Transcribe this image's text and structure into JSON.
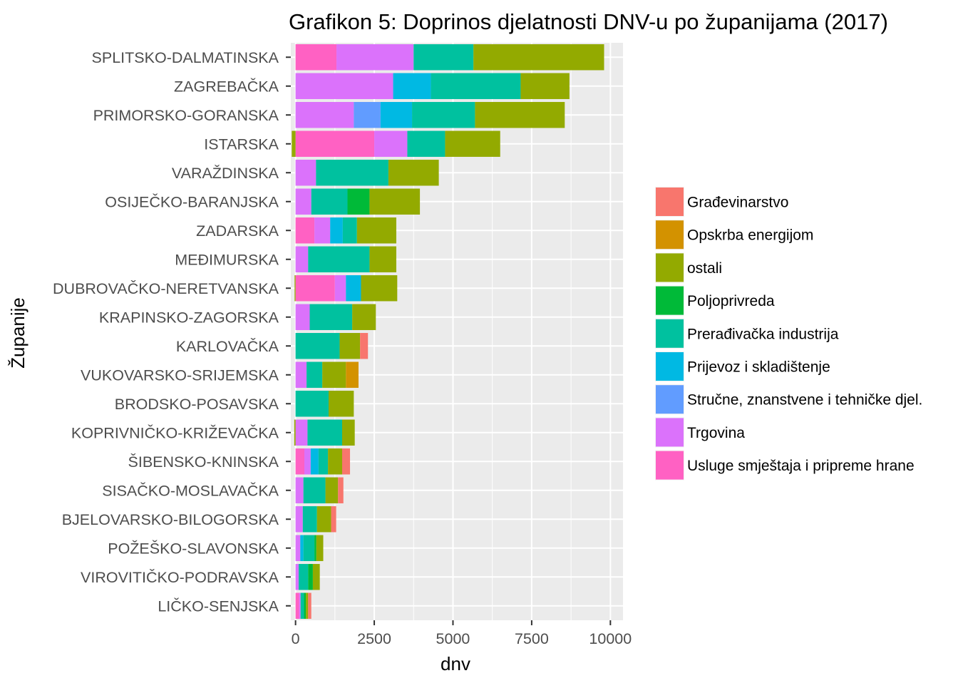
{
  "chart_data": {
    "type": "bar",
    "orientation": "horizontal",
    "stacked": true,
    "title": "Grafikon 5: Doprinos djelatnosti DNV-u po županijama (2017)",
    "xlabel": "dnv",
    "ylabel": "Županije",
    "xlim": [
      -150,
      10400
    ],
    "x_ticks": [
      0,
      2500,
      5000,
      7500,
      10000
    ],
    "x_tick_labels": [
      "0",
      "2500",
      "5000",
      "7500",
      "10000"
    ],
    "grid": true,
    "legend_position": "right",
    "categories": [
      "SPLITSKO-DALMATINSKA",
      "ZAGREBAČKA",
      "PRIMORSKO-GORANSKA",
      "ISTARSKA",
      "VARAŽDINSKA",
      "OSIJEČKO-BARANJSKA",
      "ZADARSKA",
      "MEĐIMURSKA",
      "DUBROVAČKO-NERETVANSKA",
      "KRAPINSKO-ZAGORSKA",
      "KARLOVAČKA",
      "VUKOVARSKO-SRIJEMSKA",
      "BRODSKO-POSAVSKA",
      "KOPRIVNIČKO-KRIŽEVAČKA",
      "ŠIBENSKO-KNINSKA",
      "SISAČKO-MOSLAVAČKA",
      "BJELOVARSKO-BILOGORSKA",
      "POŽEŠKO-SLAVONSKA",
      "VIROVITIČKO-PODRAVSKA",
      "LIČKO-SENJSKA"
    ],
    "stack_order": [
      "Usluge smještaja i pripreme hrane",
      "Trgovina",
      "Stručne, znanstvene i tehničke djel.",
      "Prijevoz i skladištenje",
      "Prerađivačka industrija",
      "Poljoprivreda",
      "ostali",
      "Opskrba energijom",
      "Građevinarstvo"
    ],
    "series": [
      {
        "name": "Građevinarstvo",
        "color": "#F8766D",
        "values": [
          0,
          0,
          0,
          0,
          0,
          0,
          0,
          0,
          0,
          0,
          250,
          0,
          0,
          0,
          250,
          170,
          160,
          0,
          0,
          100
        ]
      },
      {
        "name": "Opskrba energijom",
        "color": "#D39200",
        "values": [
          0,
          0,
          0,
          0,
          0,
          0,
          0,
          0,
          0,
          0,
          0,
          400,
          0,
          0,
          0,
          0,
          0,
          0,
          0,
          0
        ]
      },
      {
        "name": "ostali",
        "color": "#93AA00",
        "values": [
          4150,
          1550,
          2850,
          1750,
          1600,
          1600,
          1250,
          850,
          1150,
          750,
          650,
          750,
          800,
          400,
          450,
          400,
          450,
          220,
          220,
          70
        ]
      },
      {
        "name": "Poljoprivreda",
        "color": "#00BA38",
        "values": [
          0,
          0,
          0,
          0,
          0,
          700,
          0,
          0,
          0,
          0,
          0,
          0,
          0,
          0,
          0,
          0,
          0,
          60,
          150,
          60
        ]
      },
      {
        "name": "Prerađivačka industrija",
        "color": "#00C19F",
        "values": [
          1900,
          2850,
          2000,
          1200,
          2300,
          1150,
          450,
          1950,
          0,
          1350,
          1400,
          500,
          1050,
          1100,
          300,
          700,
          450,
          350,
          300,
          110
        ]
      },
      {
        "name": "Prijevoz i skladištenje",
        "color": "#00B9E3",
        "values": [
          0,
          1200,
          1000,
          0,
          0,
          0,
          400,
          0,
          480,
          0,
          0,
          0,
          0,
          0,
          250,
          0,
          0,
          100,
          0,
          0
        ]
      },
      {
        "name": "Stručne, znanstvene i tehničke djel.",
        "color": "#619CFF",
        "values": [
          0,
          0,
          850,
          0,
          0,
          0,
          0,
          0,
          0,
          0,
          0,
          0,
          0,
          0,
          0,
          0,
          0,
          0,
          0,
          0
        ]
      },
      {
        "name": "Trgovina",
        "color": "#DB72FB",
        "values": [
          2450,
          3100,
          1850,
          1050,
          650,
          500,
          500,
          400,
          350,
          450,
          0,
          350,
          0,
          380,
          200,
          250,
          230,
          150,
          100,
          50
        ]
      },
      {
        "name": "Usluge smještaja i pripreme hrane",
        "color": "#FF61C3",
        "values": [
          1300,
          0,
          0,
          2500,
          0,
          0,
          600,
          0,
          1250,
          0,
          0,
          0,
          0,
          0,
          280,
          0,
          0,
          0,
          0,
          110
        ]
      }
    ],
    "negative_values": [
      {
        "category": "ISTARSKA",
        "series": "ostali",
        "value": -120
      },
      {
        "category": "KOPRIVNIČKO-KRIŽEVAČKA",
        "series": "ostali",
        "value": -40
      },
      {
        "category": "DUBROVAČKO-NERETVANSKA",
        "series": "ostali",
        "value": -30
      }
    ]
  }
}
